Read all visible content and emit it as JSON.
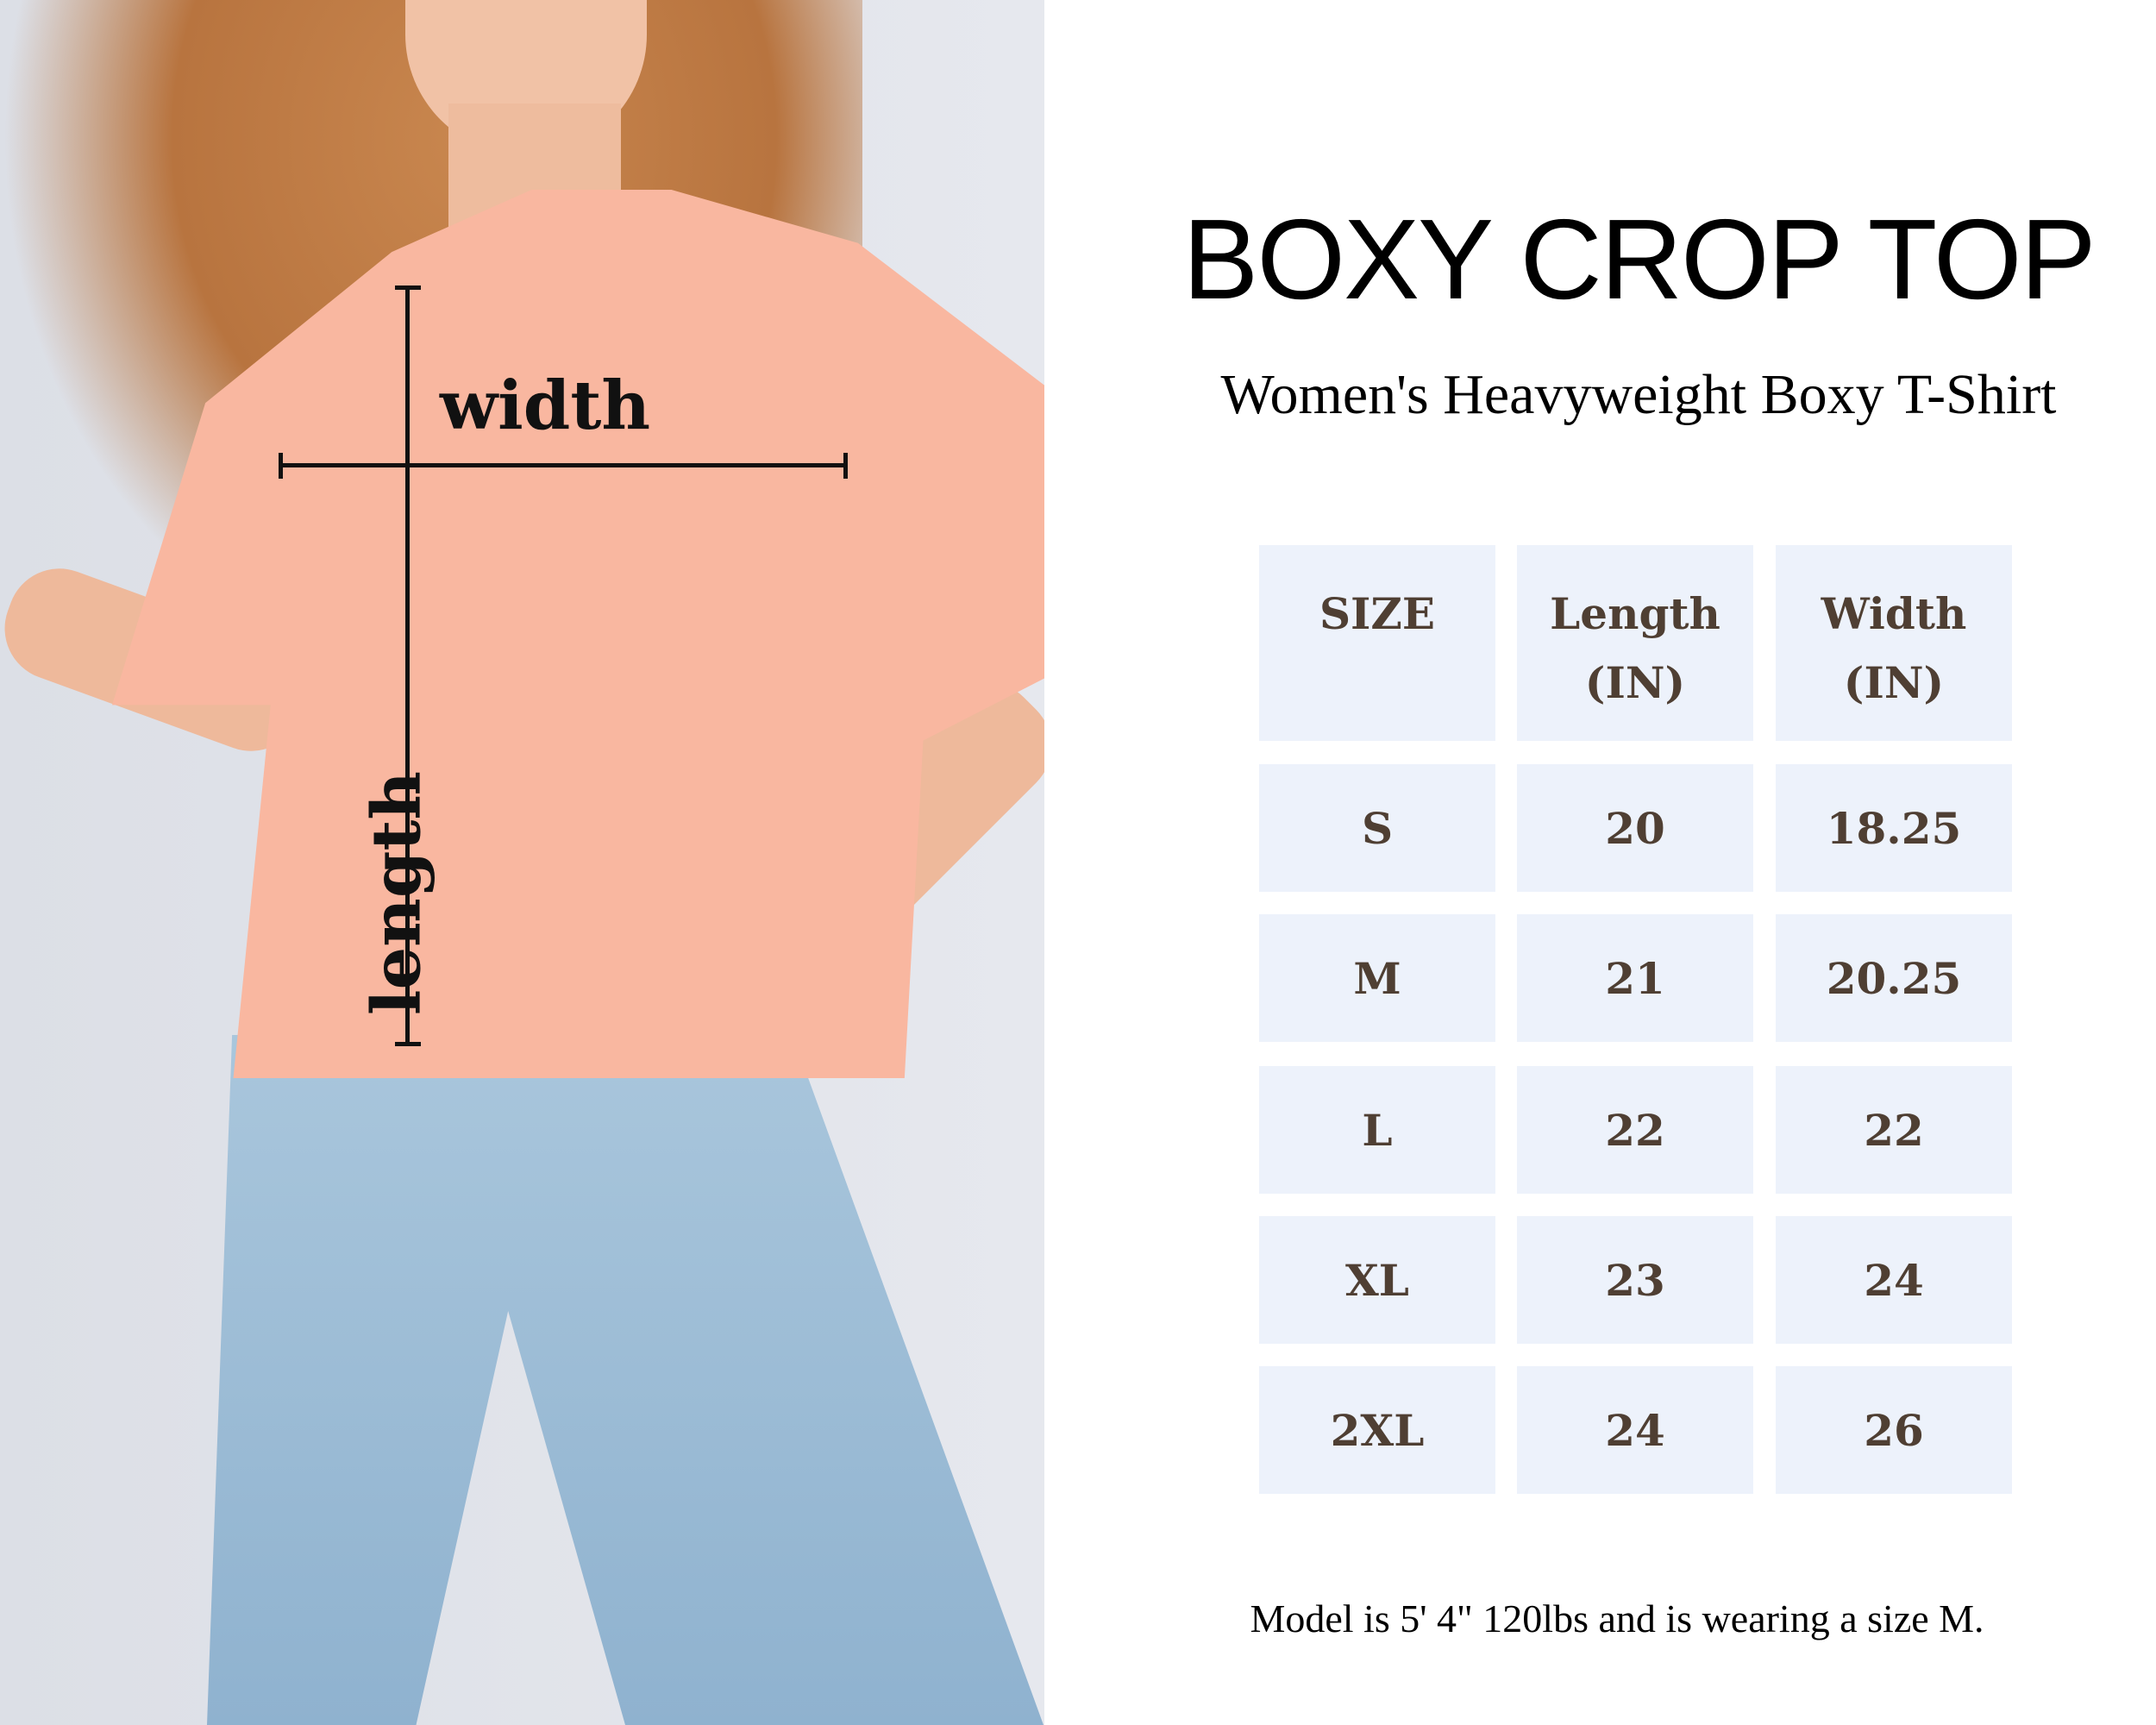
{
  "title": "BOXY CROP TOP",
  "subtitle": "Women's Heavyweight Boxy T-Shirt",
  "photo": {
    "width_label": "width",
    "length_label": "length",
    "shirt_color": "#f9b7a0",
    "jeans_color": "#a9c6dc"
  },
  "table": {
    "headers": [
      {
        "line1": "SIZE",
        "line2": ""
      },
      {
        "line1": "Length",
        "line2": "(IN)"
      },
      {
        "line1": "Width",
        "line2": "(IN)"
      }
    ],
    "rows": [
      [
        "S",
        "20",
        "18.25"
      ],
      [
        "M",
        "21",
        "20.25"
      ],
      [
        "L",
        "22",
        "22"
      ],
      [
        "XL",
        "23",
        "24"
      ],
      [
        "2XL",
        "24",
        "26"
      ]
    ],
    "cell_color": "#edf2fb",
    "text_color": "#4f3f33"
  },
  "footer": "Model is 5' 4\" 120lbs and is wearing a size M."
}
